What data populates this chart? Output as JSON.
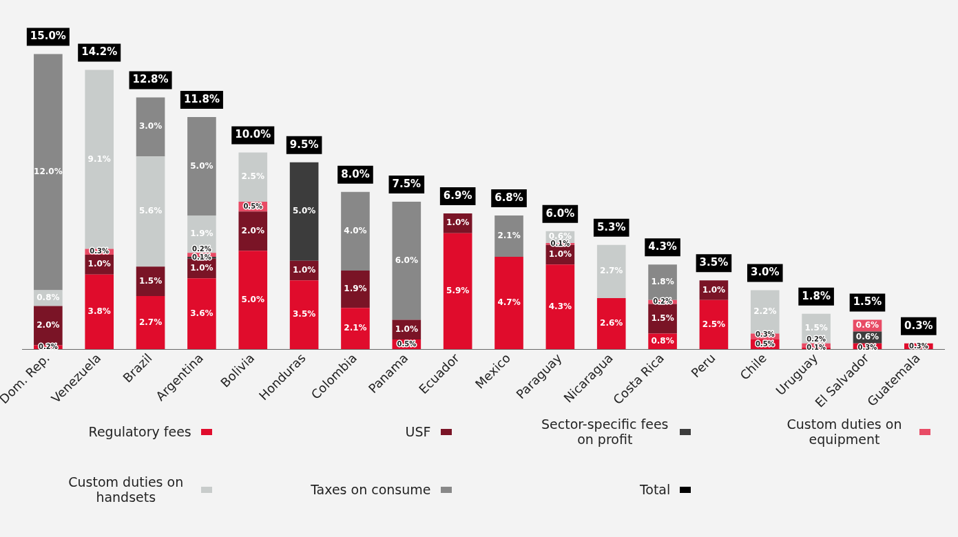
{
  "chart_data": {
    "type": "bar",
    "stacked": true,
    "legend": "bottom",
    "grid": false,
    "categories": [
      "Dom. Rep.",
      "Venezuela",
      "Brazil",
      "Argentina",
      "Bolivia",
      "Honduras",
      "Colombia",
      "Panama",
      "Ecuador",
      "Mexico",
      "Paraguay",
      "Nicaragua",
      "Costa Rica",
      "Peru",
      "Chile",
      "Uruguay",
      "El Salvador",
      "Guatemala"
    ],
    "series": [
      {
        "name": "Regulatory fees",
        "color": "#e00c2c",
        "values": [
          0.2,
          3.8,
          2.7,
          3.6,
          5.0,
          3.5,
          2.1,
          0.5,
          5.9,
          4.7,
          4.3,
          2.6,
          0.8,
          2.5,
          0.5,
          0.1,
          0.3,
          0.3
        ],
        "value_labels": [
          "0.2%",
          "3.8%",
          "2.7%",
          "3.6%",
          "5.0%",
          "3.5%",
          "2.1%",
          "0.5%",
          "5.9%",
          "4.7%",
          "4.3%",
          "2.6%",
          "0.8%",
          "2.5%",
          "0.5%",
          "0.1%",
          "0.3%",
          "0.3%"
        ]
      },
      {
        "name": "USF",
        "color": "#7a1426",
        "values": [
          2.0,
          1.0,
          1.5,
          1.0,
          2.0,
          1.0,
          1.9,
          1.0,
          1.0,
          null,
          1.0,
          null,
          1.5,
          1.0,
          null,
          null,
          null,
          null
        ],
        "value_labels": [
          "2.0%",
          "1.0%",
          "1.5%",
          "1.0%",
          "2.0%",
          "1.0%",
          "1.9%",
          "1.0%",
          "1.0%",
          null,
          "1.0%",
          null,
          "1.5%",
          "1.0%",
          null,
          null,
          null,
          null
        ]
      },
      {
        "name": "Sector-specific fees on profit",
        "color": "#3c3c3c",
        "values": [
          null,
          null,
          null,
          0.1,
          null,
          5.0,
          null,
          null,
          null,
          null,
          null,
          null,
          null,
          null,
          null,
          null,
          0.6,
          null
        ],
        "value_labels": [
          null,
          null,
          null,
          "0.1%",
          null,
          "5.0%",
          null,
          null,
          null,
          null,
          null,
          null,
          null,
          null,
          null,
          null,
          "0.6%",
          null
        ]
      },
      {
        "name": "Custom duties on equipment",
        "color": "#e84b65",
        "values": [
          null,
          0.3,
          null,
          0.2,
          0.5,
          null,
          null,
          null,
          null,
          null,
          0.1,
          null,
          0.2,
          null,
          0.3,
          0.2,
          0.6,
          null
        ],
        "value_labels": [
          null,
          "0.3%",
          null,
          "0.2%",
          "0.5%",
          null,
          null,
          null,
          null,
          null,
          "0.1%",
          null,
          "0.2%",
          null,
          "0.3%",
          "0.2%",
          "0.6%",
          null
        ]
      },
      {
        "name": "Custom duties on handsets",
        "color": "#c8cccb",
        "values": [
          0.8,
          9.1,
          5.6,
          1.9,
          2.5,
          null,
          null,
          null,
          null,
          null,
          0.6,
          2.7,
          null,
          null,
          2.2,
          1.5,
          null,
          null
        ],
        "value_labels": [
          "0.8%",
          "9.1%",
          "5.6%",
          "1.9%",
          "2.5%",
          null,
          null,
          null,
          null,
          null,
          "0.6%",
          "2.7%",
          null,
          null,
          "2.2%",
          "1.5%",
          null,
          null
        ]
      },
      {
        "name": "Taxes on consume",
        "color": "#888888",
        "values": [
          12.0,
          null,
          3.0,
          5.0,
          null,
          null,
          4.0,
          6.0,
          null,
          2.1,
          null,
          null,
          1.8,
          null,
          null,
          null,
          null,
          null
        ],
        "value_labels": [
          "12.0%",
          null,
          "3.0%",
          "5.0%",
          null,
          null,
          "4.0%",
          "6.0%",
          null,
          "2.1%",
          null,
          null,
          "1.8%",
          null,
          null,
          null,
          null,
          null
        ]
      },
      {
        "name": "Total",
        "color": "#000000",
        "values": [
          null,
          null,
          null,
          null,
          null,
          null,
          null,
          null,
          null,
          null,
          null,
          null,
          null,
          null,
          null,
          null,
          null,
          null
        ]
      }
    ],
    "totals": [
      "15.0%",
      "14.2%",
      "12.8%",
      "11.8%",
      "10.0%",
      "9.5%",
      "8.0%",
      "7.5%",
      "6.9%",
      "6.8%",
      "6.0%",
      "5.3%",
      "4.3%",
      "3.5%",
      "3.0%",
      "1.8%",
      "1.5%",
      "0.3%"
    ]
  }
}
